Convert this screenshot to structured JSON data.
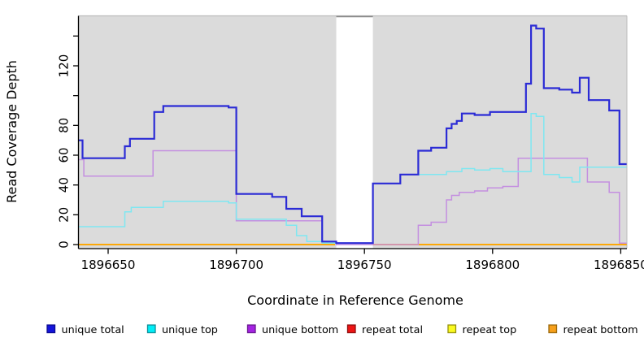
{
  "chart_data": {
    "type": "line",
    "subtype": "step",
    "title": "",
    "xlabel": "Coordinate in Reference Genome",
    "ylabel": "Read Coverage Depth",
    "xlim": [
      1896638.5,
      1896852.3
    ],
    "ylim": [
      0,
      154
    ],
    "grid": false,
    "plot_bg_color": "#DBDBDB",
    "x_ticks": [
      1896650,
      1896700,
      1896750,
      1896800,
      1896850
    ],
    "y_ticks": [
      0,
      20,
      40,
      60,
      80,
      100,
      120,
      140
    ],
    "y_tick_labels": [
      "0",
      "20",
      "40",
      "60",
      "80",
      "",
      "120",
      ""
    ],
    "masked_region": {
      "x_start": 1896739,
      "x_end": 1896753.3,
      "color": "#FFFFFF"
    },
    "legend_position": "bottom",
    "legend": [
      {
        "label": "unique total",
        "fill": "#1414DB",
        "border": "#0B0B8F"
      },
      {
        "label": "unique top",
        "fill": "#00EEF7",
        "border": "#0E8F99"
      },
      {
        "label": "unique bottom",
        "fill": "#A524E3",
        "border": "#68188F"
      },
      {
        "label": "repeat total",
        "fill": "#EE1515",
        "border": "#8F0F0F"
      },
      {
        "label": "repeat top",
        "fill": "#FAFA20",
        "border": "#96920F"
      },
      {
        "label": "repeat bottom",
        "fill": "#F7A01B",
        "border": "#9A690D"
      }
    ],
    "series": [
      {
        "name": "repeat total",
        "color": "#CD2626",
        "width": 1.5,
        "segments": [
          [
            [
              1896638.5,
              0
            ],
            [
              1896738.5,
              0
            ]
          ],
          [
            [
              1896753.3,
              0
            ],
            [
              1896852.3,
              0
            ]
          ]
        ]
      },
      {
        "name": "repeat top",
        "color": "#FFFF00",
        "width": 1.5,
        "segments": [
          [
            [
              1896638.5,
              0
            ],
            [
              1896738.5,
              0
            ]
          ],
          [
            [
              1896753.3,
              0
            ],
            [
              1896852.3,
              0
            ]
          ]
        ]
      },
      {
        "name": "repeat bottom",
        "color": "#FFA500",
        "width": 1.8,
        "segments": [
          [
            [
              1896638.5,
              0
            ],
            [
              1896738.5,
              0
            ]
          ],
          [
            [
              1896753.3,
              0
            ],
            [
              1896852.3,
              0
            ]
          ]
        ]
      },
      {
        "name": "unique bottom",
        "color": "#C48FE0",
        "width": 1.5,
        "segments": [
          [
            [
              1896638.5,
              57
            ],
            [
              1896640.5,
              46
            ],
            [
              1896667.5,
              63
            ],
            [
              1896700,
              16
            ],
            [
              1896733.5,
              1
            ],
            [
              1896739,
              0
            ],
            [
              1896753.3,
              0
            ],
            [
              1896771,
              13
            ],
            [
              1896776,
              15
            ],
            [
              1896782,
              30
            ],
            [
              1896784,
              33
            ],
            [
              1896787,
              35
            ],
            [
              1896793,
              36
            ],
            [
              1896798,
              38
            ],
            [
              1896804,
              39
            ],
            [
              1896810,
              58
            ],
            [
              1896837,
              42
            ],
            [
              1896845.5,
              35
            ],
            [
              1896849.5,
              1
            ],
            [
              1896852.3,
              1
            ]
          ]
        ]
      },
      {
        "name": "unique top",
        "color": "#7FE7F1",
        "width": 1.5,
        "segments": [
          [
            [
              1896638.5,
              12
            ],
            [
              1896656.5,
              22
            ],
            [
              1896659,
              25
            ],
            [
              1896671.5,
              29
            ],
            [
              1896697,
              28
            ],
            [
              1896700,
              17
            ],
            [
              1896719.5,
              13
            ],
            [
              1896723.5,
              6
            ],
            [
              1896727.5,
              2
            ],
            [
              1896733.5,
              1
            ],
            [
              1896753.3,
              41
            ],
            [
              1896764,
              47
            ],
            [
              1896782,
              49
            ],
            [
              1896788,
              51
            ],
            [
              1896793,
              50
            ],
            [
              1896799,
              51
            ],
            [
              1896804,
              49
            ],
            [
              1896815,
              88
            ],
            [
              1896817,
              86
            ],
            [
              1896820,
              47
            ],
            [
              1896826,
              45
            ],
            [
              1896831,
              42
            ],
            [
              1896834,
              52
            ],
            [
              1896852.3,
              52
            ]
          ]
        ]
      },
      {
        "name": "unique total",
        "color": "#2B2BD5",
        "width": 2.2,
        "segments": [
          [
            [
              1896638.5,
              70
            ],
            [
              1896640,
              58
            ],
            [
              1896656.5,
              66
            ],
            [
              1896658.5,
              71
            ],
            [
              1896668,
              89
            ],
            [
              1896671.5,
              93
            ],
            [
              1896697,
              92
            ],
            [
              1896700,
              34
            ],
            [
              1896714,
              32
            ],
            [
              1896719.5,
              24
            ],
            [
              1896725.5,
              19
            ],
            [
              1896733.5,
              2
            ],
            [
              1896739,
              1
            ],
            [
              1896753.3,
              41
            ],
            [
              1896764,
              47
            ],
            [
              1896771,
              63
            ],
            [
              1896776,
              65
            ],
            [
              1896782,
              78
            ],
            [
              1896784,
              81
            ],
            [
              1896786,
              83
            ],
            [
              1896788,
              88
            ],
            [
              1896793,
              87
            ],
            [
              1896799,
              89
            ],
            [
              1896813,
              108
            ],
            [
              1896815,
              147
            ],
            [
              1896817,
              145
            ],
            [
              1896820,
              105
            ],
            [
              1896826,
              104
            ],
            [
              1896831,
              102
            ],
            [
              1896834,
              112
            ],
            [
              1896837.5,
              97
            ],
            [
              1896845.5,
              90
            ],
            [
              1896849.5,
              54
            ],
            [
              1896852.3,
              54
            ]
          ]
        ]
      }
    ]
  }
}
